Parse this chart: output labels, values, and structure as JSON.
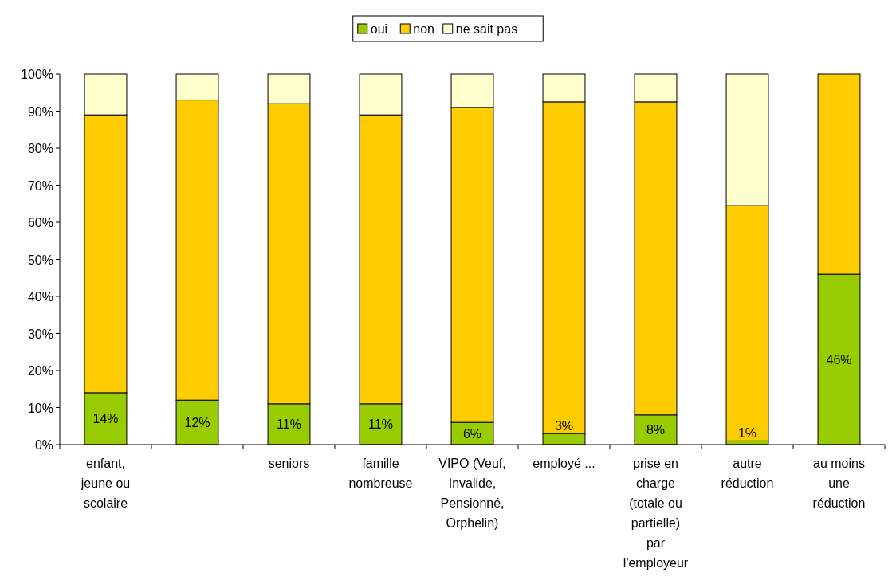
{
  "chart_data": {
    "type": "bar",
    "stacked": true,
    "legend": "top",
    "categories": [
      "enfant, jeune ou scolaire",
      null,
      "seniors",
      "famille nombreuse",
      "VIPO (Veuf, Invalide, Pensionné, Orphelin)",
      "employé ...",
      "prise en charge (totale ou partielle) par l'employeur",
      "autre réduction",
      "au moins une réduction"
    ],
    "series": [
      {
        "name": "oui",
        "color": "#99cc00",
        "values": [
          14,
          12,
          11,
          11,
          6,
          3,
          8,
          1,
          46
        ],
        "value_labels": [
          "14%",
          "12%",
          "11%",
          "11%",
          "6%",
          "3%",
          "8%",
          "1%",
          "46%"
        ]
      },
      {
        "name": "non",
        "color": "#ffcc00",
        "values": [
          75,
          81,
          81,
          78,
          85,
          89.5,
          84.5,
          63.5,
          54
        ]
      },
      {
        "name": "ne sait pas",
        "color": "#ffffcc",
        "values": [
          11,
          7,
          8,
          11,
          9,
          7.5,
          7.5,
          35.5,
          0
        ]
      }
    ],
    "ylim": [
      0,
      100
    ],
    "yticks": [
      {
        "value": 0,
        "label": "0%"
      },
      {
        "value": 10,
        "label": "10%"
      },
      {
        "value": 20,
        "label": "20%"
      },
      {
        "value": 30,
        "label": "30%"
      },
      {
        "value": 40,
        "label": "40%"
      },
      {
        "value": 50,
        "label": "50%"
      },
      {
        "value": 60,
        "label": "60%"
      },
      {
        "value": 70,
        "label": "70%"
      },
      {
        "value": 80,
        "label": "80%"
      },
      {
        "value": 90,
        "label": "90%"
      },
      {
        "value": 100,
        "label": "100%"
      }
    ]
  }
}
